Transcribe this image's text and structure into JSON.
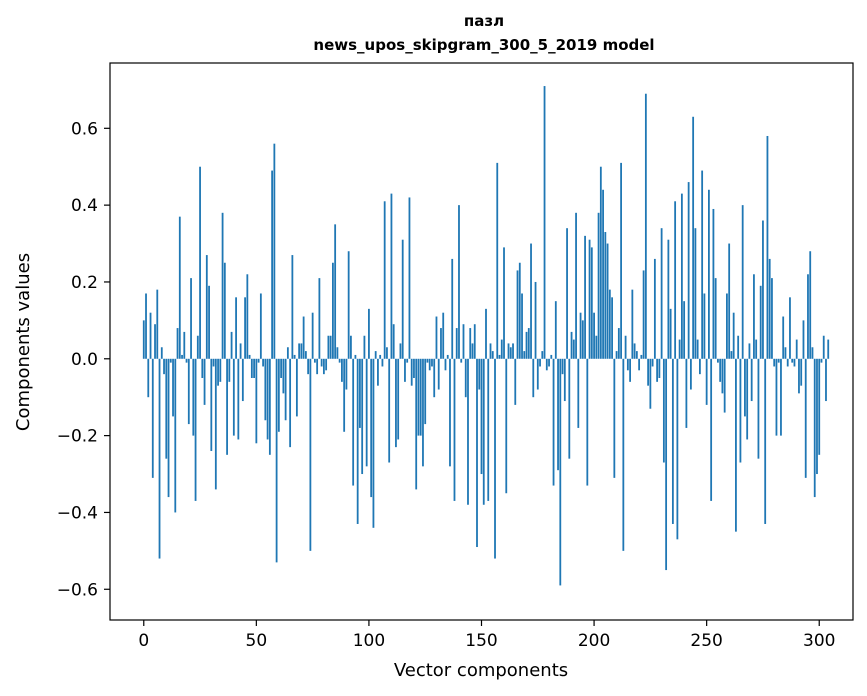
{
  "chart_data": {
    "type": "bar",
    "title": [
      "пазл",
      "news_upos_skipgram_300_5_2019 model"
    ],
    "xlabel": "Vector components",
    "ylabel": "Components values",
    "xlim": [
      -15,
      315
    ],
    "ylim": [
      -0.68,
      0.77
    ],
    "xticks": [
      0,
      50,
      100,
      150,
      200,
      250,
      300
    ],
    "yticks": [
      -0.6,
      -0.4,
      -0.2,
      0.0,
      0.2,
      0.4,
      0.6
    ],
    "ytick_labels": [
      "−0.6",
      "−0.4",
      "−0.2",
      "0.0",
      "0.2",
      "0.4",
      "0.6"
    ],
    "bar_color": "#1f77b4",
    "grid": false,
    "series": [
      {
        "values": [
          0.1,
          0.17,
          -0.1,
          0.12,
          -0.31,
          0.09,
          0.18,
          -0.52,
          0.03,
          -0.04,
          -0.26,
          -0.36,
          -0.01,
          -0.15,
          -0.4,
          0.08,
          0.37,
          0.01,
          0.07,
          -0.01,
          -0.17,
          0.21,
          -0.2,
          -0.37,
          0.06,
          0.5,
          -0.05,
          -0.12,
          0.27,
          0.19,
          -0.24,
          -0.02,
          -0.34,
          -0.07,
          -0.06,
          0.38,
          0.25,
          -0.25,
          -0.06,
          0.07,
          -0.2,
          0.16,
          -0.21,
          0.04,
          -0.11,
          0.16,
          0.22,
          0.01,
          -0.05,
          -0.05,
          -0.22,
          -0.01,
          0.17,
          -0.02,
          -0.16,
          -0.21,
          -0.25,
          0.49,
          0.56,
          -0.53,
          -0.19,
          -0.05,
          -0.09,
          -0.16,
          0.03,
          -0.23,
          0.27,
          0.01,
          -0.15,
          0.04,
          0.04,
          0.11,
          0.02,
          -0.04,
          -0.5,
          0.12,
          -0.01,
          -0.04,
          0.21,
          -0.02,
          -0.04,
          -0.03,
          0.06,
          0.06,
          0.25,
          0.35,
          0.03,
          -0.01,
          -0.06,
          -0.19,
          -0.08,
          0.28,
          0.06,
          -0.33,
          0.01,
          -0.43,
          -0.18,
          -0.3,
          0.06,
          -0.28,
          0.13,
          -0.36,
          -0.44,
          0.02,
          -0.07,
          0.01,
          -0.02,
          0.41,
          0.03,
          -0.27,
          0.43,
          0.09,
          -0.23,
          -0.21,
          0.04,
          0.31,
          -0.06,
          -0.01,
          0.42,
          -0.07,
          -0.05,
          -0.34,
          -0.2,
          -0.2,
          -0.28,
          -0.17,
          -0.01,
          -0.03,
          -0.02,
          -0.1,
          0.11,
          -0.08,
          0.08,
          0.12,
          -0.03,
          0.01,
          -0.28,
          0.26,
          -0.37,
          0.08,
          0.4,
          -0.01,
          0.09,
          -0.1,
          -0.38,
          0.08,
          0.04,
          0.09,
          -0.49,
          -0.08,
          -0.3,
          -0.38,
          0.13,
          -0.37,
          0.04,
          0.02,
          -0.52,
          0.51,
          0.01,
          0.05,
          0.29,
          -0.35,
          0.04,
          0.03,
          0.04,
          -0.12,
          0.23,
          0.25,
          0.17,
          0.02,
          0.07,
          0.08,
          0.3,
          -0.1,
          0.2,
          -0.08,
          -0.02,
          0.02,
          0.71,
          -0.03,
          -0.02,
          0.01,
          -0.33,
          0.15,
          -0.29,
          -0.59,
          -0.04,
          -0.11,
          0.34,
          -0.26,
          0.07,
          0.05,
          0.38,
          -0.18,
          0.12,
          0.1,
          0.32,
          -0.33,
          0.31,
          0.29,
          0.12,
          0.06,
          0.38,
          0.5,
          0.44,
          0.33,
          0.3,
          0.18,
          0.16,
          -0.31,
          0.02,
          0.08,
          0.51,
          -0.5,
          0.06,
          -0.03,
          -0.06,
          0.18,
          0.04,
          0.02,
          -0.03,
          0.01,
          0.23,
          0.69,
          -0.07,
          -0.13,
          -0.02,
          0.26,
          -0.06,
          -0.05,
          0.34,
          -0.27,
          -0.55,
          0.31,
          0.13,
          -0.43,
          0.41,
          -0.47,
          0.05,
          0.43,
          0.15,
          -0.18,
          0.46,
          -0.08,
          0.63,
          0.34,
          0.05,
          -0.04,
          0.49,
          0.17,
          -0.12,
          0.44,
          -0.37,
          0.39,
          0.21,
          -0.01,
          -0.06,
          -0.09,
          -0.14,
          0.17,
          0.3,
          0.02,
          0.12,
          -0.45,
          0.06,
          -0.27,
          0.4,
          -0.15,
          -0.21,
          0.04,
          -0.11,
          0.22,
          0.05,
          -0.26,
          0.19,
          0.36,
          -0.43,
          0.58,
          0.26,
          0.21,
          -0.02,
          -0.2,
          -0.01,
          -0.2,
          0.11,
          0.03,
          -0.02,
          0.16,
          -0.01,
          -0.02,
          0.05,
          -0.09,
          -0.07,
          0.1,
          -0.31,
          0.22,
          0.28,
          0.03,
          -0.36,
          -0.3,
          -0.25,
          -0.01,
          0.06,
          -0.11,
          0.05
        ]
      }
    ]
  }
}
